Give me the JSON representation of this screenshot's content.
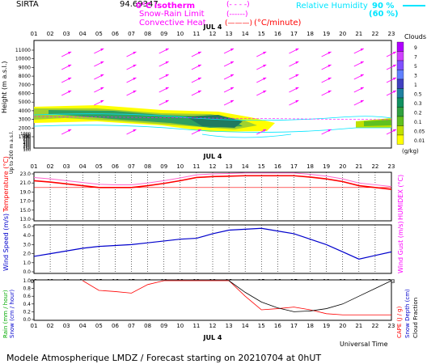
{
  "header": {
    "site": "SIRTA",
    "coords": "94.69347",
    "legend_isotherm": "0°C isotherm",
    "legend_isotherm_sym": "(- - - -)",
    "legend_snowrain": "Snow-Rain Limit",
    "legend_snowrain_sym": "(------)",
    "legend_convective": "Convective Heat.",
    "legend_convective_sym": "(———)",
    "legend_convective_unit": "(°C/minute)",
    "legend_rh": "Relative Humidity",
    "legend_rh_90": "90 %",
    "legend_rh_60": "(60 %)"
  },
  "colors": {
    "magenta": "#ff00ff",
    "cyan": "#00e5ff",
    "red": "#ff0000",
    "blue": "#0000cc",
    "black": "#000000",
    "pink": "#ff66cc"
  },
  "axes": {
    "hours": [
      "01",
      "02",
      "03",
      "04",
      "05",
      "06",
      "07",
      "08",
      "09",
      "10",
      "11",
      "12",
      "13",
      "14",
      "15",
      "16",
      "17",
      "18",
      "19",
      "20",
      "21",
      "22",
      "23"
    ],
    "date_label": "JUL  4",
    "height_ticks_upper": [
      "11000",
      "10000",
      "9000",
      "8000",
      "7000",
      "6000",
      "5000",
      "4000",
      "3000",
      "2000",
      "1500"
    ],
    "height_ticks_lower": [
      "1000",
      "900",
      "800",
      "700",
      "600",
      "500",
      "400",
      "300",
      "200",
      "150",
      "100"
    ],
    "height_label": "Height (m a.s.l.)",
    "height_sublabel": "Up to 200 m a.s.l.",
    "temp_ticks": [
      "23.0",
      "21.0",
      "19.0",
      "17.0",
      "15.0",
      "13.0"
    ],
    "temp_label": "Temperature (°C)",
    "humidex_label": "HUMIDEX (°C)",
    "wind_ticks": [
      "5.0",
      "4.0",
      "3.0",
      "2.0",
      "1.0",
      "0.0"
    ],
    "wind_label": "Wind Speed (m/s)",
    "gust_label": "Wind Gust (m/s)",
    "rain_ticks": [
      "1.0",
      "0.8",
      "0.6",
      "0.4",
      "0.2",
      "0.0"
    ],
    "rain_label": "Rain (mm / hour)",
    "snow_label": "Snow (cm / hour)",
    "cape_label": "CAPE (J / g)",
    "snowdepth_label": "Snow Depth (cm)",
    "cloudfrac_label": "Cloud Fraction",
    "xlabel": "Universal Time"
  },
  "colorbar": {
    "title": "Clouds",
    "unit": "(g/kg)",
    "levels": [
      "9",
      "7",
      "5",
      "3",
      "1",
      "0.5",
      "0.3",
      "0.2",
      "0.1",
      "0.05",
      "0.01"
    ],
    "colors": [
      "#b000ff",
      "#d040ff",
      "#8050ff",
      "#6080ff",
      "#4040c0",
      "#2080a0",
      "#109060",
      "#30a040",
      "#60c020",
      "#c0e000",
      "#ffff00"
    ]
  },
  "footer": {
    "text": "Modele Atmospherique LMDZ / Forecast starting on 20210704 at 0hUT"
  },
  "chart_data": [
    {
      "type": "line",
      "title": "Temperature / HUMIDEX",
      "x": [
        1,
        2,
        3,
        4,
        5,
        6,
        7,
        8,
        9,
        10,
        11,
        12,
        13,
        14,
        15,
        16,
        17,
        18,
        19,
        20,
        21,
        22,
        23
      ],
      "ylim": [
        13,
        23
      ],
      "series": [
        {
          "name": "Temperature",
          "values": [
            21.5,
            21.2,
            20.8,
            20.4,
            20.0,
            20.0,
            20.0,
            20.4,
            20.9,
            21.5,
            22.2,
            22.4,
            22.5,
            22.6,
            22.6,
            22.6,
            22.6,
            22.3,
            21.9,
            21.3,
            20.4,
            20.0,
            19.6
          ]
        },
        {
          "name": "HUMIDEX",
          "values": [
            22.2,
            21.9,
            21.5,
            21.1,
            20.7,
            20.6,
            20.6,
            21.0,
            21.5,
            22.1,
            22.8,
            23.0,
            23.1,
            23.2,
            23.2,
            23.2,
            23.2,
            22.9,
            22.5,
            21.9,
            21.0,
            20.6,
            20.2
          ]
        }
      ]
    },
    {
      "type": "line",
      "title": "Wind",
      "x": [
        1,
        2,
        3,
        4,
        5,
        6,
        7,
        8,
        9,
        10,
        11,
        12,
        13,
        14,
        15,
        16,
        17,
        18,
        19,
        20,
        21,
        22,
        23
      ],
      "ylim": [
        0,
        5
      ],
      "series": [
        {
          "name": "Wind Speed",
          "values": [
            1.7,
            2.0,
            2.3,
            2.6,
            2.8,
            2.9,
            3.0,
            3.2,
            3.4,
            3.6,
            3.7,
            4.2,
            4.6,
            4.7,
            4.8,
            4.5,
            4.2,
            3.6,
            3.0,
            2.2,
            1.4,
            1.8,
            2.2
          ]
        }
      ]
    },
    {
      "type": "line",
      "title": "Rain / CAPE",
      "x": [
        1,
        2,
        3,
        4,
        5,
        6,
        7,
        8,
        9,
        10,
        11,
        12,
        13,
        14,
        15,
        16,
        17,
        18,
        19,
        20,
        21,
        22,
        23
      ],
      "ylim": [
        0,
        1
      ],
      "series": [
        {
          "name": "CAPE",
          "values": [
            null,
            null,
            null,
            1.0,
            0.75,
            0.72,
            0.68,
            0.9,
            1.0,
            1.0,
            1.0,
            1.0,
            1.0,
            0.6,
            0.25,
            0.28,
            0.32,
            0.25,
            0.15,
            0.12,
            0.12,
            0.12,
            0.12
          ]
        },
        {
          "name": "Cloud Fraction",
          "values": [
            null,
            null,
            null,
            null,
            null,
            null,
            null,
            null,
            null,
            null,
            null,
            null,
            1.0,
            0.7,
            0.45,
            0.3,
            0.2,
            0.22,
            0.28,
            0.4,
            0.6,
            0.8,
            1.0
          ]
        }
      ]
    }
  ]
}
